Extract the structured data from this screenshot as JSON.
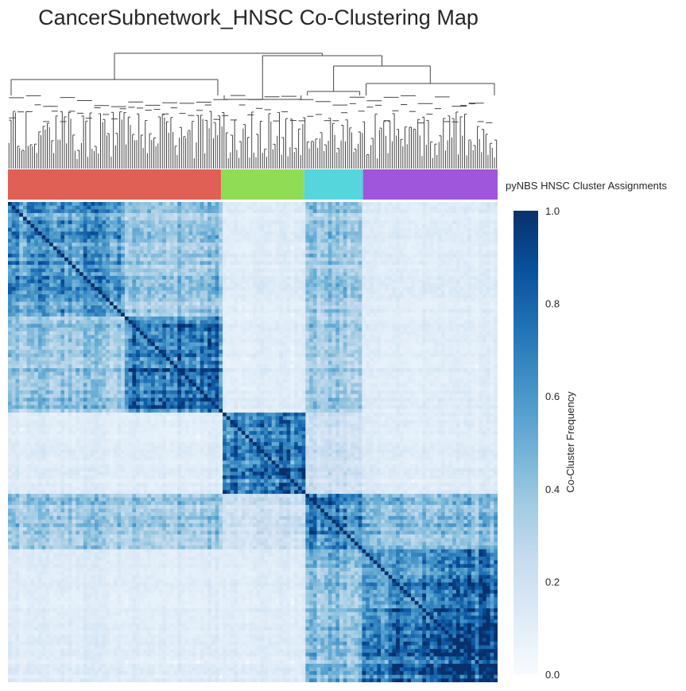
{
  "chart_data": {
    "type": "heatmap",
    "title": "CancerSubnetwork_HNSC Co-Clustering Map",
    "row_annotation_label": "pyNBS HNSC Cluster Assignments",
    "colorbar": {
      "label": "Co-Cluster Frequency",
      "range": [
        0.0,
        1.0
      ],
      "ticks": [
        "0.0",
        "0.2",
        "0.4",
        "0.6",
        "0.8",
        "1.0"
      ],
      "colormap": "Blues",
      "colors": [
        "#f7fbff",
        "#deebf7",
        "#c6dbef",
        "#9ecae1",
        "#6baed6",
        "#4292c6",
        "#2171b5",
        "#08519c",
        "#08306b"
      ]
    },
    "clusters": [
      {
        "color": "#e06055",
        "size_fraction": 0.435
      },
      {
        "color": "#91dc55",
        "size_fraction": 0.17
      },
      {
        "color": "#55d6dc",
        "size_fraction": 0.12
      },
      {
        "color": "#9f55dc",
        "size_fraction": 0.275
      }
    ],
    "block_mean_frequency": [
      [
        0.55,
        0.12,
        0.4,
        0.12
      ],
      [
        0.12,
        0.75,
        0.22,
        0.12
      ],
      [
        0.4,
        0.22,
        0.7,
        0.45
      ],
      [
        0.12,
        0.12,
        0.45,
        0.85
      ]
    ],
    "dendrogram": "row/column hierarchical clustering tree shown above heatmap"
  }
}
